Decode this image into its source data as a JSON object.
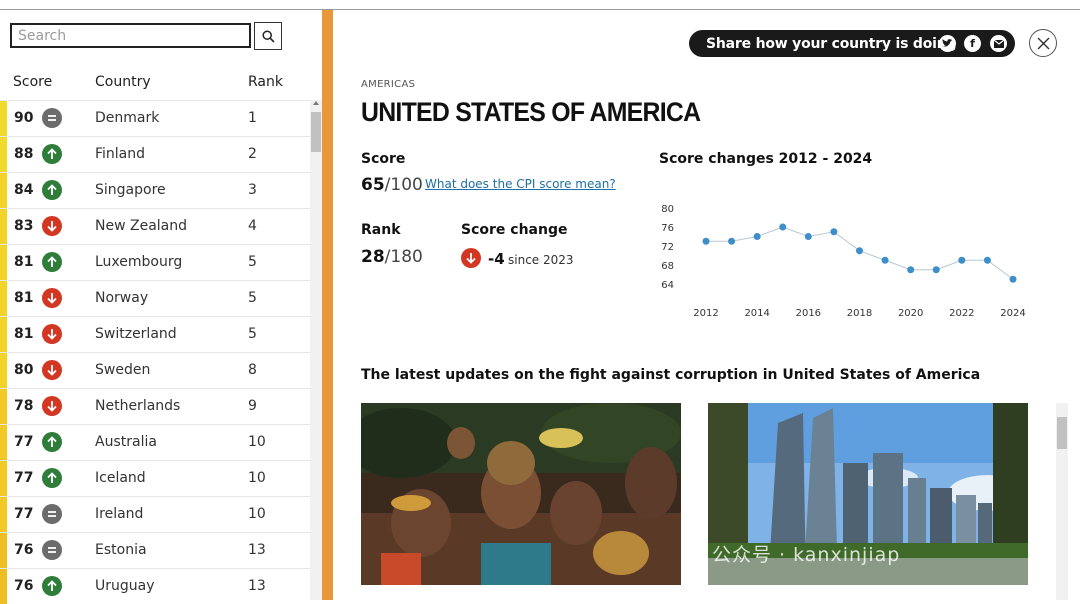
{
  "search": {
    "placeholder": "Search"
  },
  "table": {
    "headers": {
      "score": "Score",
      "country": "Country",
      "rank": "Rank"
    },
    "rows": [
      {
        "score": "90",
        "trend": "equal",
        "country": "Denmark",
        "rank": "1"
      },
      {
        "score": "88",
        "trend": "up",
        "country": "Finland",
        "rank": "2"
      },
      {
        "score": "84",
        "trend": "up",
        "country": "Singapore",
        "rank": "3"
      },
      {
        "score": "83",
        "trend": "down",
        "country": "New Zealand",
        "rank": "4"
      },
      {
        "score": "81",
        "trend": "up",
        "country": "Luxembourg",
        "rank": "5"
      },
      {
        "score": "81",
        "trend": "down",
        "country": "Norway",
        "rank": "5"
      },
      {
        "score": "81",
        "trend": "down",
        "country": "Switzerland",
        "rank": "5"
      },
      {
        "score": "80",
        "trend": "down",
        "country": "Sweden",
        "rank": "8"
      },
      {
        "score": "78",
        "trend": "down",
        "country": "Netherlands",
        "rank": "9"
      },
      {
        "score": "77",
        "trend": "up",
        "country": "Australia",
        "rank": "10"
      },
      {
        "score": "77",
        "trend": "up",
        "country": "Iceland",
        "rank": "10"
      },
      {
        "score": "77",
        "trend": "equal",
        "country": "Ireland",
        "rank": "10"
      },
      {
        "score": "76",
        "trend": "equal",
        "country": "Estonia",
        "rank": "13"
      },
      {
        "score": "76",
        "trend": "up",
        "country": "Uruguay",
        "rank": "13"
      }
    ]
  },
  "share": {
    "label": "Share how your country is doing",
    "icons": [
      "twitter-icon",
      "facebook-icon",
      "email-icon"
    ]
  },
  "detail": {
    "region": "AMERICAS",
    "title": "UNITED STATES OF AMERICA",
    "score_label": "Score",
    "score_value": "65",
    "score_total": "/100",
    "cpi_link": "What does the CPI score mean?",
    "rank_label": "Rank",
    "rank_value": "28",
    "rank_total": "/180",
    "change_label": "Score change",
    "change_value": "-4",
    "change_since": "since 2023",
    "chart_title": "Score changes 2012 - 2024",
    "updates_heading": "The latest updates on the fight against corruption in United States of America"
  },
  "watermark": "公众号 · kanxinjiap",
  "colors": {
    "up": "#2e7d3a",
    "down": "#d33724",
    "equal": "#6b6b6b",
    "accent": "#e8973a",
    "point": "#3d8fc9"
  },
  "chart_data": {
    "type": "line",
    "x": [
      2012,
      2013,
      2014,
      2015,
      2016,
      2017,
      2018,
      2019,
      2020,
      2021,
      2022,
      2023,
      2024
    ],
    "values": [
      73,
      73,
      74,
      76,
      74,
      75,
      71,
      69,
      67,
      67,
      69,
      69,
      65
    ],
    "x_ticks": [
      "2012",
      "2014",
      "2016",
      "2018",
      "2020",
      "2022",
      "2024"
    ],
    "y_ticks": [
      "80",
      "76",
      "72",
      "68",
      "64"
    ],
    "ylim": [
      64,
      80
    ],
    "grid": false
  }
}
